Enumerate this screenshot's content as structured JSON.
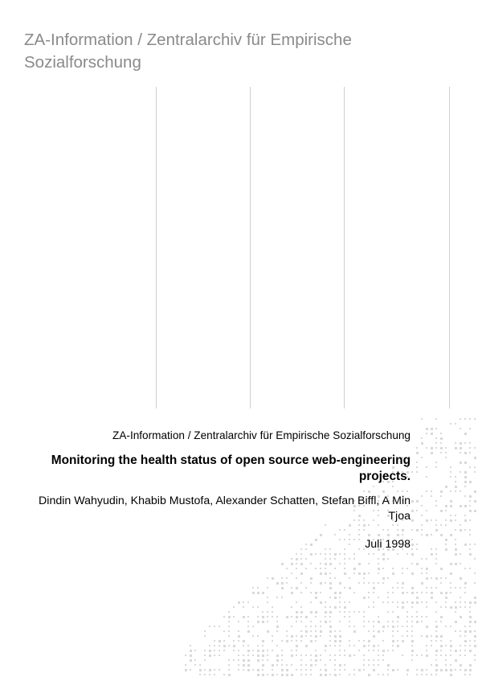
{
  "header": {
    "title": "ZA-Information / Zentralarchiv für Empirische Sozialforschung"
  },
  "document": {
    "publisher": "ZA-Information / Zentralarchiv für Empirische Sozialforschung",
    "title": "Monitoring the health status of open source web-engineering projects.",
    "authors": "Dindin Wahyudin, Khabib Mustofa, Alexander Schatten, Stefan Biffl, A Min Tjoa",
    "date": "Juli 1998"
  },
  "colors": {
    "header_text": "#8a8a8a",
    "rule_lines": "#cfcfcf",
    "pattern_dots": "#d9d9d9"
  }
}
